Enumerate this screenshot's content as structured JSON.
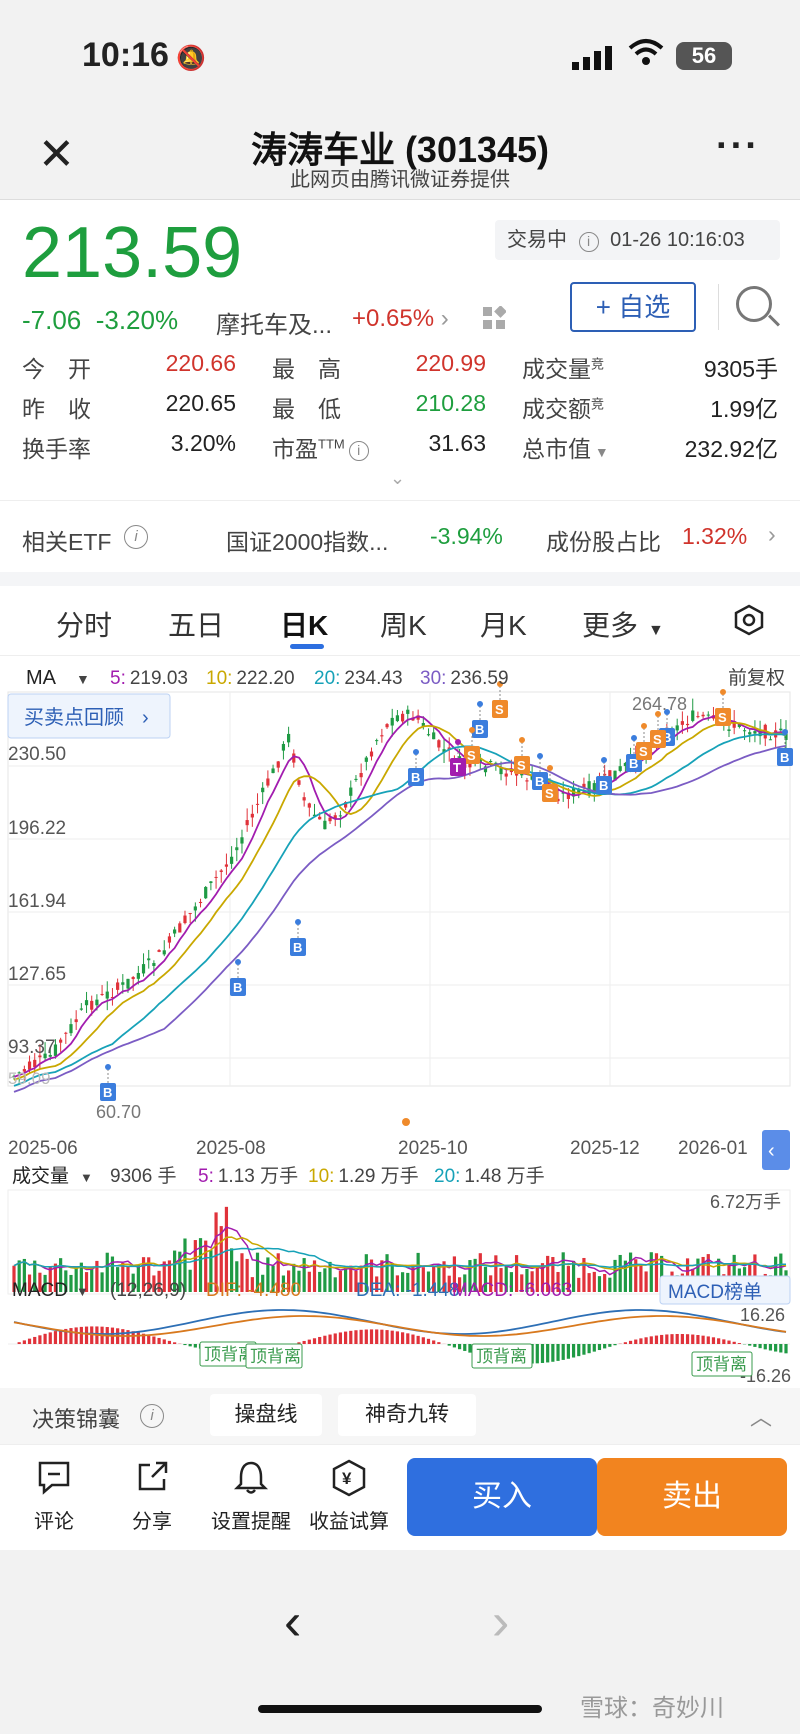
{
  "status_bar": {
    "time": "10:16",
    "battery": "56"
  },
  "header": {
    "title": "涛涛车业 (301345)",
    "subtitle": "此网页由腾讯微证券提供"
  },
  "quote": {
    "price": "213.59",
    "change": "-7.06",
    "change_pct": "-3.20%",
    "industry": "摩托车及...",
    "industry_change": "+0.65%",
    "trading_status": "交易中",
    "datetime": "01-26 10:16:03",
    "watch_label": "+ 自选"
  },
  "stats": [
    [
      {
        "label": "今　开",
        "value": "220.66",
        "tone": "red"
      },
      {
        "label": "最　高",
        "value": "220.99",
        "tone": "red"
      },
      {
        "label": "成交量",
        "sup": "竞",
        "value": "9305手",
        "tone": "dark"
      }
    ],
    [
      {
        "label": "昨　收",
        "value": "220.65",
        "tone": "dark"
      },
      {
        "label": "最　低",
        "value": "210.28",
        "tone": "green"
      },
      {
        "label": "成交额",
        "sup": "竞",
        "value": "1.99亿",
        "tone": "dark"
      }
    ],
    [
      {
        "label": "换手率",
        "value": "3.20%",
        "tone": "dark"
      },
      {
        "label": "市盈",
        "sup": "TTM",
        "value": "31.63",
        "tone": "dark"
      },
      {
        "label": "总市值",
        "value": "232.92亿",
        "tone": "dark"
      }
    ]
  ],
  "etf": {
    "label": "相关ETF",
    "index_name": "国证2000指数...",
    "index_change": "-3.94%",
    "weight_label": "成份股占比",
    "weight_value": "1.32%"
  },
  "tabs": [
    "分时",
    "五日",
    "日K",
    "周K",
    "月K",
    "更多"
  ],
  "active_tab": "日K",
  "kline": {
    "ma_selector": "MA",
    "ma_values": [
      {
        "label": "5:",
        "value": "219.03",
        "color": "#a21caf"
      },
      {
        "label": "10:",
        "value": "222.20",
        "color": "#c9a800"
      },
      {
        "label": "20:",
        "value": "234.43",
        "color": "#17a2b8"
      },
      {
        "label": "30:",
        "value": "236.59",
        "color": "#7b5cc4"
      }
    ],
    "adjust_mode": "前复权",
    "review_button": "买卖点回顾",
    "y_ticks": [
      "230.50",
      "196.22",
      "161.94",
      "127.65",
      "93.37",
      "59.09"
    ],
    "high_label": "264.78",
    "low_label": "60.70",
    "x_ticks": [
      "2025-06",
      "2025-08",
      "2025-10",
      "2025-12",
      "2026-01"
    ],
    "markers": {
      "buy": "B",
      "sell": "S",
      "t": "T"
    }
  },
  "volume": {
    "selector": "成交量",
    "current": "9306 手",
    "ma": [
      {
        "label": "5:",
        "value": "1.13 万手",
        "color": "#a21caf"
      },
      {
        "label": "10:",
        "value": "1.29 万手",
        "color": "#c9a800"
      },
      {
        "label": "20:",
        "value": "1.48 万手",
        "color": "#17a2b8"
      }
    ],
    "max_label": "6.72万手"
  },
  "macd": {
    "selector": "MACD",
    "params": "(12,26,9)",
    "dif": "DIF: -4.480",
    "dea": "DEA: -1.448",
    "macd": "MACD: -6.063",
    "rank_button": "MACD榜单",
    "max_label": "16.26",
    "min_label": "-16.26",
    "annotations": [
      "顶背离",
      "顶背离",
      "顶背离",
      "顶背离"
    ]
  },
  "decision": {
    "label": "决策锦囊",
    "chips": [
      "操盘线",
      "神奇九转"
    ]
  },
  "toolbar": {
    "items": [
      {
        "label": "评论",
        "icon": "comment-icon"
      },
      {
        "label": "分享",
        "icon": "share-icon"
      },
      {
        "label": "设置提醒",
        "icon": "bell-icon"
      },
      {
        "label": "收益试算",
        "icon": "yen-icon"
      }
    ],
    "buy": "买入",
    "sell": "卖出"
  },
  "watermark": "雪球：奇妙川"
}
